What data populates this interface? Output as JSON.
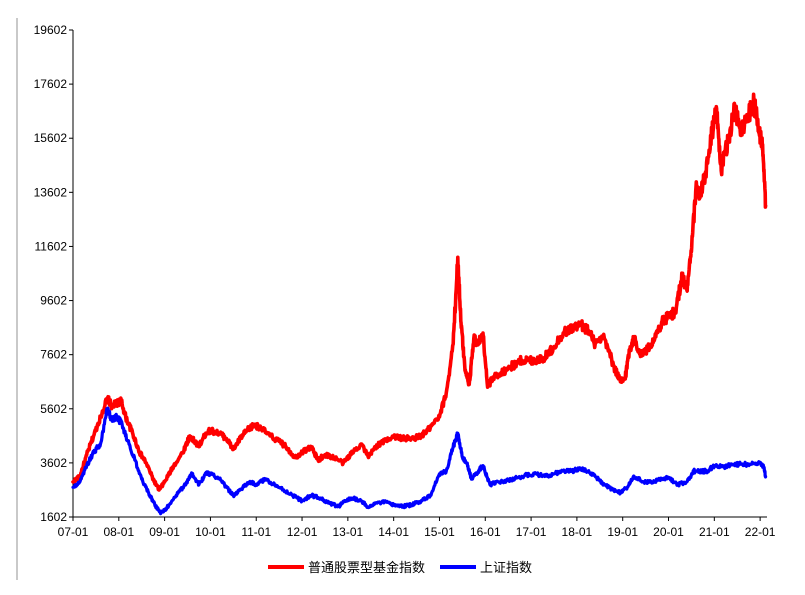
{
  "chart_data": {
    "type": "line",
    "title": "",
    "xlabel": "",
    "ylabel": "",
    "ylim": [
      1602,
      19602
    ],
    "yticks": [
      1602,
      3602,
      5602,
      7602,
      9602,
      11602,
      13602,
      15602,
      17602,
      19602
    ],
    "xlim": [
      2007.0,
      2022.15
    ],
    "xticks": [
      {
        "label": "07-01",
        "x": 2007.0
      },
      {
        "label": "08-01",
        "x": 2008.0
      },
      {
        "label": "09-01",
        "x": 2009.0
      },
      {
        "label": "10-01",
        "x": 2010.0
      },
      {
        "label": "11-01",
        "x": 2011.0
      },
      {
        "label": "12-01",
        "x": 2012.0
      },
      {
        "label": "13-01",
        "x": 2013.0
      },
      {
        "label": "14-01",
        "x": 2014.0
      },
      {
        "label": "15-01",
        "x": 2015.0
      },
      {
        "label": "16-01",
        "x": 2016.0
      },
      {
        "label": "17-01",
        "x": 2017.0
      },
      {
        "label": "18-01",
        "x": 2018.0
      },
      {
        "label": "19-01",
        "x": 2019.0
      },
      {
        "label": "20-01",
        "x": 2020.0
      },
      {
        "label": "21-01",
        "x": 2021.0
      },
      {
        "label": "22-01",
        "x": 2022.0
      }
    ],
    "grid": false,
    "legend_position": "bottom",
    "series": [
      {
        "name": "普通股票型基金指数",
        "color": "#ff0000",
        "points": [
          [
            2007.0,
            2900
          ],
          [
            2007.15,
            3100
          ],
          [
            2007.3,
            3900
          ],
          [
            2007.45,
            4600
          ],
          [
            2007.6,
            5300
          ],
          [
            2007.75,
            6000
          ],
          [
            2007.85,
            5700
          ],
          [
            2007.95,
            5800
          ],
          [
            2008.05,
            5900
          ],
          [
            2008.15,
            5300
          ],
          [
            2008.3,
            4700
          ],
          [
            2008.45,
            4000
          ],
          [
            2008.6,
            3600
          ],
          [
            2008.75,
            3000
          ],
          [
            2008.88,
            2600
          ],
          [
            2009.0,
            2900
          ],
          [
            2009.2,
            3500
          ],
          [
            2009.4,
            4000
          ],
          [
            2009.55,
            4600
          ],
          [
            2009.65,
            4400
          ],
          [
            2009.75,
            4200
          ],
          [
            2009.9,
            4700
          ],
          [
            2010.0,
            4800
          ],
          [
            2010.2,
            4700
          ],
          [
            2010.35,
            4500
          ],
          [
            2010.5,
            4100
          ],
          [
            2010.65,
            4500
          ],
          [
            2010.8,
            4800
          ],
          [
            2010.95,
            5000
          ],
          [
            2011.1,
            4900
          ],
          [
            2011.3,
            4600
          ],
          [
            2011.5,
            4400
          ],
          [
            2011.65,
            4200
          ],
          [
            2011.85,
            3800
          ],
          [
            2012.0,
            4000
          ],
          [
            2012.2,
            4200
          ],
          [
            2012.35,
            3700
          ],
          [
            2012.5,
            3900
          ],
          [
            2012.7,
            3800
          ],
          [
            2012.9,
            3600
          ],
          [
            2013.1,
            4000
          ],
          [
            2013.3,
            4300
          ],
          [
            2013.45,
            3800
          ],
          [
            2013.6,
            4200
          ],
          [
            2013.8,
            4400
          ],
          [
            2014.0,
            4600
          ],
          [
            2014.2,
            4500
          ],
          [
            2014.4,
            4500
          ],
          [
            2014.6,
            4600
          ],
          [
            2014.8,
            4900
          ],
          [
            2015.0,
            5300
          ],
          [
            2015.15,
            6200
          ],
          [
            2015.3,
            8000
          ],
          [
            2015.4,
            11200
          ],
          [
            2015.47,
            8800
          ],
          [
            2015.55,
            7200
          ],
          [
            2015.65,
            6500
          ],
          [
            2015.75,
            8200
          ],
          [
            2015.85,
            8000
          ],
          [
            2015.95,
            8400
          ],
          [
            2016.05,
            6400
          ],
          [
            2016.2,
            6800
          ],
          [
            2016.4,
            7000
          ],
          [
            2016.6,
            7200
          ],
          [
            2016.8,
            7400
          ],
          [
            2016.95,
            7400
          ],
          [
            2017.1,
            7400
          ],
          [
            2017.3,
            7500
          ],
          [
            2017.5,
            7900
          ],
          [
            2017.7,
            8400
          ],
          [
            2017.9,
            8600
          ],
          [
            2018.1,
            8700
          ],
          [
            2018.25,
            8500
          ],
          [
            2018.4,
            8000
          ],
          [
            2018.6,
            8200
          ],
          [
            2018.8,
            7200
          ],
          [
            2018.95,
            6600
          ],
          [
            2019.05,
            6700
          ],
          [
            2019.15,
            7800
          ],
          [
            2019.25,
            8200
          ],
          [
            2019.4,
            7600
          ],
          [
            2019.55,
            7800
          ],
          [
            2019.7,
            8200
          ],
          [
            2019.85,
            8800
          ],
          [
            2020.0,
            9000
          ],
          [
            2020.15,
            9200
          ],
          [
            2020.3,
            10500
          ],
          [
            2020.4,
            10000
          ],
          [
            2020.5,
            11400
          ],
          [
            2020.6,
            13800
          ],
          [
            2020.7,
            13500
          ],
          [
            2020.8,
            14200
          ],
          [
            2020.95,
            15800
          ],
          [
            2021.05,
            16700
          ],
          [
            2021.15,
            14400
          ],
          [
            2021.3,
            15500
          ],
          [
            2021.45,
            16700
          ],
          [
            2021.55,
            16000
          ],
          [
            2021.7,
            16200
          ],
          [
            2021.85,
            16900
          ],
          [
            2021.95,
            16300
          ],
          [
            2022.05,
            15200
          ],
          [
            2022.12,
            13100
          ]
        ]
      },
      {
        "name": "上证指数",
        "color": "#0000ff",
        "points": [
          [
            2007.0,
            2700
          ],
          [
            2007.15,
            2900
          ],
          [
            2007.3,
            3500
          ],
          [
            2007.45,
            4000
          ],
          [
            2007.6,
            4300
          ],
          [
            2007.75,
            5600
          ],
          [
            2007.85,
            5200
          ],
          [
            2007.95,
            5300
          ],
          [
            2008.05,
            5100
          ],
          [
            2008.2,
            4400
          ],
          [
            2008.35,
            3700
          ],
          [
            2008.5,
            3000
          ],
          [
            2008.65,
            2500
          ],
          [
            2008.8,
            2000
          ],
          [
            2008.92,
            1750
          ],
          [
            2009.05,
            1950
          ],
          [
            2009.25,
            2400
          ],
          [
            2009.45,
            2800
          ],
          [
            2009.6,
            3200
          ],
          [
            2009.75,
            2800
          ],
          [
            2009.9,
            3200
          ],
          [
            2010.0,
            3200
          ],
          [
            2010.2,
            3000
          ],
          [
            2010.35,
            2700
          ],
          [
            2010.5,
            2400
          ],
          [
            2010.65,
            2600
          ],
          [
            2010.85,
            2900
          ],
          [
            2011.0,
            2800
          ],
          [
            2011.2,
            3000
          ],
          [
            2011.4,
            2800
          ],
          [
            2011.6,
            2600
          ],
          [
            2011.8,
            2400
          ],
          [
            2012.0,
            2200
          ],
          [
            2012.2,
            2400
          ],
          [
            2012.4,
            2300
          ],
          [
            2012.6,
            2100
          ],
          [
            2012.8,
            2000
          ],
          [
            2012.95,
            2200
          ],
          [
            2013.1,
            2300
          ],
          [
            2013.3,
            2200
          ],
          [
            2013.45,
            1950
          ],
          [
            2013.6,
            2100
          ],
          [
            2013.8,
            2150
          ],
          [
            2014.0,
            2050
          ],
          [
            2014.2,
            2000
          ],
          [
            2014.4,
            2050
          ],
          [
            2014.6,
            2200
          ],
          [
            2014.8,
            2400
          ],
          [
            2015.0,
            3200
          ],
          [
            2015.15,
            3300
          ],
          [
            2015.3,
            4200
          ],
          [
            2015.4,
            4700
          ],
          [
            2015.5,
            3800
          ],
          [
            2015.6,
            3600
          ],
          [
            2015.7,
            3000
          ],
          [
            2015.85,
            3300
          ],
          [
            2015.95,
            3500
          ],
          [
            2016.1,
            2800
          ],
          [
            2016.3,
            2900
          ],
          [
            2016.5,
            2950
          ],
          [
            2016.7,
            3050
          ],
          [
            2016.9,
            3150
          ],
          [
            2017.1,
            3200
          ],
          [
            2017.3,
            3100
          ],
          [
            2017.5,
            3200
          ],
          [
            2017.7,
            3300
          ],
          [
            2017.9,
            3300
          ],
          [
            2018.05,
            3400
          ],
          [
            2018.2,
            3300
          ],
          [
            2018.4,
            3100
          ],
          [
            2018.6,
            2800
          ],
          [
            2018.8,
            2600
          ],
          [
            2018.95,
            2500
          ],
          [
            2019.1,
            2700
          ],
          [
            2019.25,
            3100
          ],
          [
            2019.45,
            2900
          ],
          [
            2019.65,
            2900
          ],
          [
            2019.85,
            3000
          ],
          [
            2020.0,
            3050
          ],
          [
            2020.2,
            2800
          ],
          [
            2020.4,
            2900
          ],
          [
            2020.55,
            3300
          ],
          [
            2020.7,
            3300
          ],
          [
            2020.85,
            3300
          ],
          [
            2021.0,
            3500
          ],
          [
            2021.2,
            3450
          ],
          [
            2021.4,
            3550
          ],
          [
            2021.6,
            3550
          ],
          [
            2021.8,
            3550
          ],
          [
            2022.0,
            3600
          ],
          [
            2022.08,
            3450
          ],
          [
            2022.12,
            3100
          ]
        ]
      }
    ]
  }
}
